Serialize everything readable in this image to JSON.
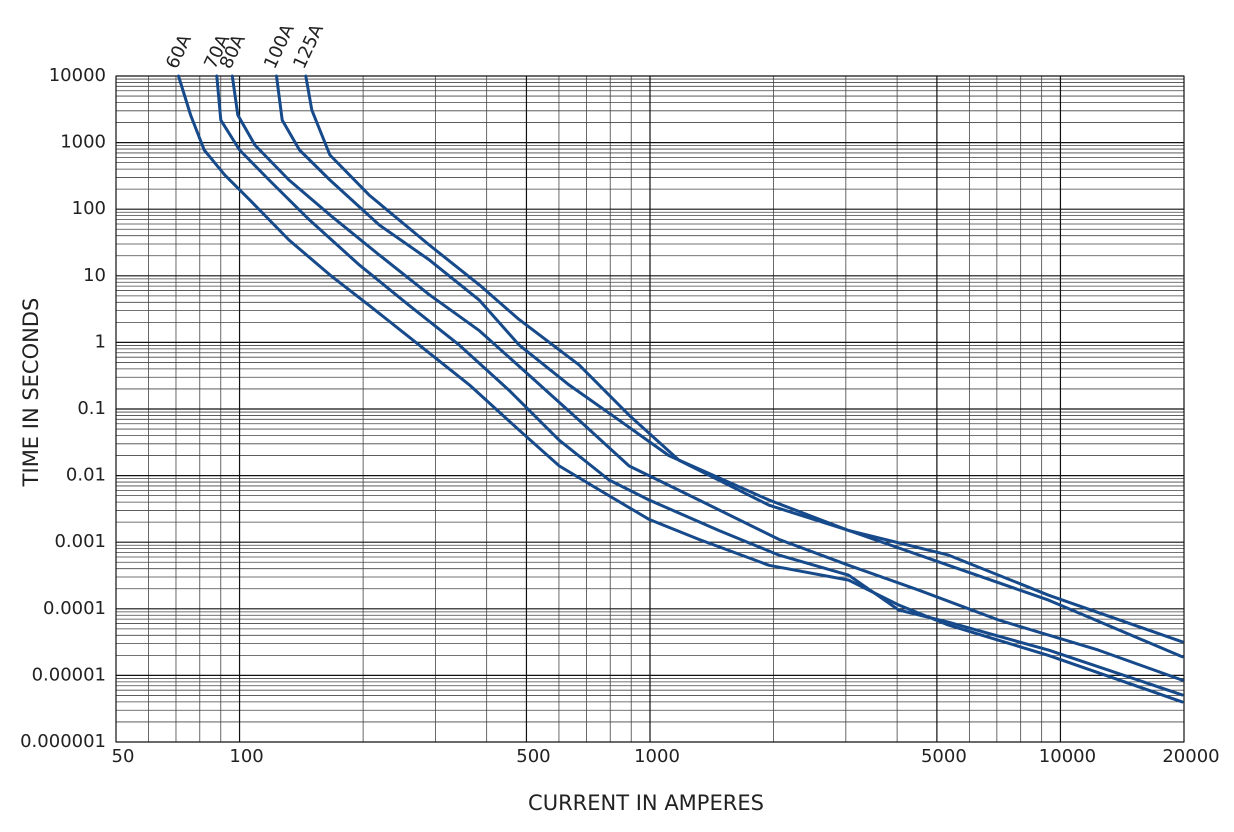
{
  "chart_data": {
    "type": "line",
    "xlabel": "CURRENT IN AMPERES",
    "ylabel": "TIME IN SECONDS",
    "xscale": "log",
    "yscale": "log",
    "xlim": [
      50,
      20000
    ],
    "ylim": [
      1e-06,
      10000
    ],
    "xticks": [
      50,
      100,
      500,
      1000,
      5000,
      10000,
      20000
    ],
    "yticks": [
      10000,
      1000,
      100,
      10,
      1,
      0.1,
      0.01,
      0.001,
      0.0001,
      1e-05,
      1e-06
    ],
    "grid": true,
    "minor_grid": true,
    "series": [
      {
        "name": "60A",
        "color": "#174a8b",
        "x": [
          71,
          76,
          82,
          92,
          106,
          132,
          166,
          207,
          274,
          363,
          480,
          601,
          752,
          995,
          1316,
          1950,
          3048,
          4036,
          5336,
          9352,
          19800
        ],
        "values": [
          10000,
          2600,
          774,
          327,
          137,
          34.5,
          10.3,
          3.6,
          0.91,
          0.23,
          0.048,
          0.014,
          0.0061,
          0.0022,
          0.0011,
          0.00045,
          0.00027,
          0.000114,
          5.7e-05,
          2e-05,
          4e-06
        ]
      },
      {
        "name": "70A",
        "color": "#174a8b",
        "x": [
          88,
          90,
          100,
          118,
          148,
          196,
          259,
          343,
          454,
          601,
          795,
          995,
          1472,
          2061,
          3048,
          4036,
          5336,
          9352,
          19800
        ],
        "values": [
          10000,
          2180,
          774,
          274,
          69,
          14.5,
          3.6,
          0.91,
          0.19,
          0.034,
          0.0086,
          0.0043,
          0.0015,
          0.00064,
          0.00032,
          9.6e-05,
          6.3e-05,
          2.4e-05,
          5.1e-06
        ]
      },
      {
        "name": "80A",
        "color": "#174a8b",
        "x": [
          96,
          99,
          109,
          132,
          166,
          219,
          290,
          384,
          508,
          672,
          889,
          1316,
          2061,
          3048,
          4519,
          7063,
          12370,
          19800
        ],
        "values": [
          10000,
          2600,
          920,
          274,
          82,
          20.5,
          5.2,
          1.5,
          0.32,
          0.068,
          0.014,
          0.0043,
          0.0011,
          0.00045,
          0.00019,
          6.8e-05,
          2.4e-05,
          8.5e-06
        ]
      },
      {
        "name": "100A",
        "color": "#174a8b",
        "x": [
          123,
          127,
          140,
          166,
          219,
          290,
          384,
          480,
          635,
          841,
          1112,
          1950,
          3048,
          5336,
          9352,
          19800
        ],
        "values": [
          10000,
          2180,
          774,
          274,
          58,
          17.3,
          4.3,
          0.91,
          0.23,
          0.068,
          0.02,
          0.0043,
          0.0015,
          0.00045,
          0.000135,
          1.9e-05
        ]
      },
      {
        "name": "125A",
        "color": "#174a8b",
        "x": [
          145,
          150,
          166,
          207,
          290,
          384,
          480,
          672,
          889,
          1177,
          1950,
          3048,
          5336,
          9352,
          19800
        ],
        "values": [
          10000,
          3090,
          652,
          163,
          29,
          7.3,
          2.2,
          0.46,
          0.081,
          0.017,
          0.0036,
          0.0015,
          0.00064,
          0.00016,
          3.2e-05
        ]
      }
    ]
  }
}
